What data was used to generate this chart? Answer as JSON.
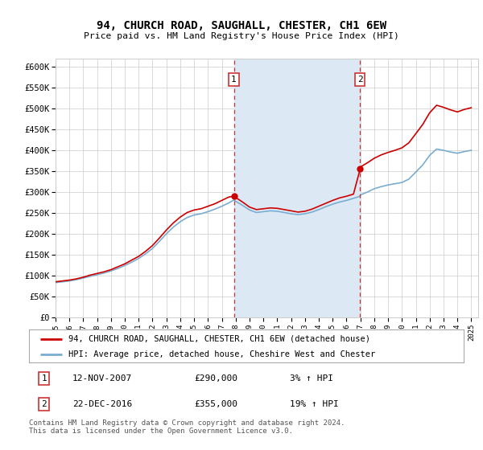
{
  "title": "94, CHURCH ROAD, SAUGHALL, CHESTER, CH1 6EW",
  "subtitle": "Price paid vs. HM Land Registry's House Price Index (HPI)",
  "ylim": [
    0,
    620000
  ],
  "yticks": [
    0,
    50000,
    100000,
    150000,
    200000,
    250000,
    300000,
    350000,
    400000,
    450000,
    500000,
    550000,
    600000
  ],
  "ytick_labels": [
    "£0",
    "£50K",
    "£100K",
    "£150K",
    "£200K",
    "£250K",
    "£300K",
    "£350K",
    "£400K",
    "£450K",
    "£500K",
    "£550K",
    "£600K"
  ],
  "sale1_date": 2007.87,
  "sale1_price": 290000,
  "sale1_label": "12-NOV-2007",
  "sale1_pct": "3%",
  "sale2_date": 2016.98,
  "sale2_price": 355000,
  "sale2_label": "22-DEC-2016",
  "sale2_pct": "19%",
  "line_color_property": "#cc0000",
  "line_color_hpi": "#7aadcf",
  "legend_label_property": "94, CHURCH ROAD, SAUGHALL, CHESTER, CH1 6EW (detached house)",
  "legend_label_hpi": "HPI: Average price, detached house, Cheshire West and Chester",
  "footer": "Contains HM Land Registry data © Crown copyright and database right 2024.\nThis data is licensed under the Open Government Licence v3.0.",
  "background_color": "#ffffff",
  "shading_color": "#dce9f5",
  "grid_color": "#cccccc",
  "marker_box_color": "#cc3333",
  "xlim_left": 1995,
  "xlim_right": 2025.5
}
